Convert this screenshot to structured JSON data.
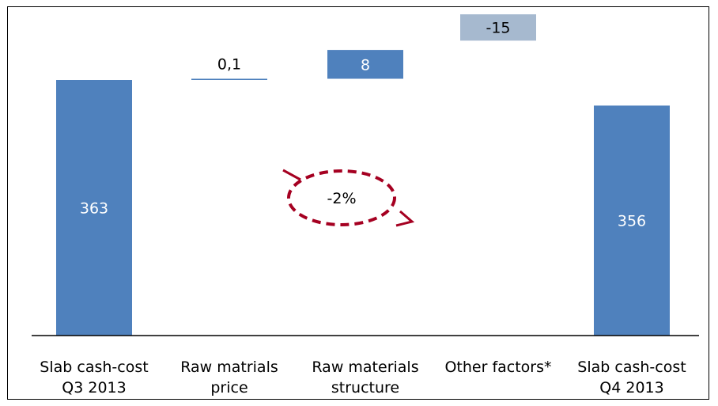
{
  "chart_data": {
    "type": "bar",
    "subtype": "waterfall",
    "categories": [
      [
        "Slab cash-cost",
        "Q3 2013"
      ],
      [
        "Raw matrials",
        "price"
      ],
      [
        "Raw materials",
        "structure"
      ],
      [
        "Other factors*"
      ],
      [
        "Slab cash-cost",
        "Q4 2013"
      ]
    ],
    "bars": [
      {
        "kind": "total",
        "value": 363,
        "label": "363"
      },
      {
        "kind": "delta",
        "value": 0.1,
        "label": "0,1"
      },
      {
        "kind": "delta",
        "value": 8,
        "label": "8"
      },
      {
        "kind": "delta",
        "value": -15,
        "label": "-15"
      },
      {
        "kind": "total",
        "value": 356,
        "label": "356"
      }
    ],
    "annotation": "-2%",
    "grid": false,
    "legend": "none",
    "colors": {
      "total": "#4F81BD",
      "increase": "#4F81BD",
      "decrease": "#A6B9CF",
      "annotation": "#A50021"
    }
  }
}
